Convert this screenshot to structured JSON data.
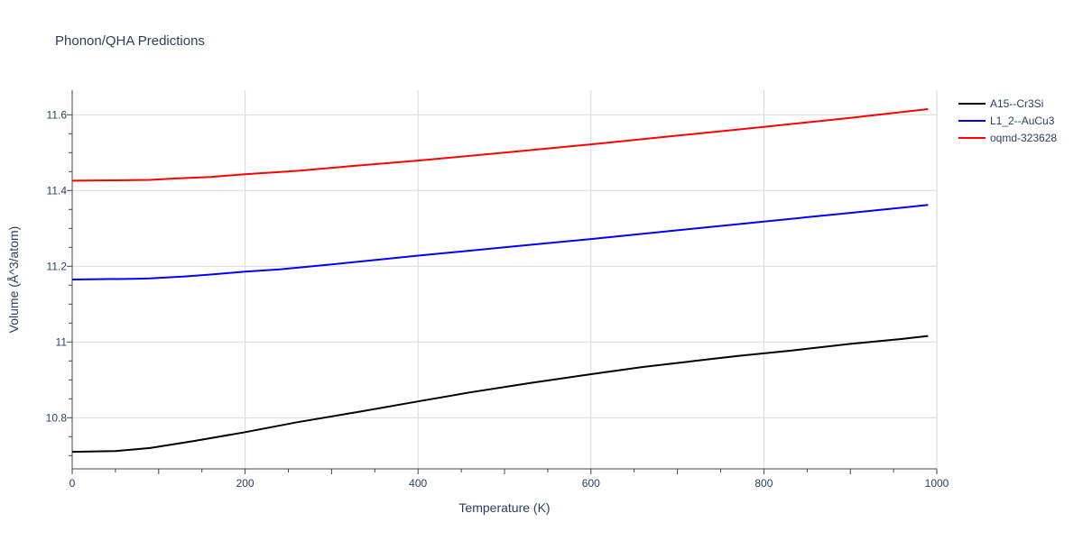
{
  "chart_data": {
    "type": "line",
    "title": "Phonon/QHA Predictions",
    "xlabel": "Temperature (K)",
    "ylabel": "Volume (Å^3/atom)",
    "xlim": [
      0,
      1000
    ],
    "ylim": [
      10.665,
      11.665
    ],
    "xticks": [
      0,
      200,
      400,
      600,
      800,
      1000
    ],
    "xtick_labels": [
      "0",
      "200",
      "400",
      "600",
      "800",
      "1000"
    ],
    "yticks": [
      10.8,
      11.0,
      11.2,
      11.4,
      11.6
    ],
    "ytick_labels": [
      "10.8",
      "11",
      "11.2",
      "11.4",
      "11.6"
    ],
    "grid": true,
    "legend_position": "top-right",
    "series": [
      {
        "name": "A15--Cr3Si",
        "color": "#000000",
        "x": [
          0,
          20,
          50,
          90,
          140,
          200,
          260,
          330,
          400,
          460,
          530,
          600,
          660,
          720,
          770,
          830,
          900,
          960,
          990
        ],
        "y": [
          10.71,
          10.711,
          10.712,
          10.72,
          10.738,
          10.762,
          10.788,
          10.815,
          10.843,
          10.867,
          10.892,
          10.915,
          10.934,
          10.95,
          10.963,
          10.977,
          10.995,
          11.008,
          11.016
        ]
      },
      {
        "name": "L1_2--AuCu3",
        "color": "#0000ff",
        "x": [
          0,
          70,
          90,
          130,
          160,
          200,
          240,
          300,
          400,
          500,
          600,
          700,
          800,
          900,
          990
        ],
        "y": [
          11.165,
          11.167,
          11.168,
          11.173,
          11.178,
          11.186,
          11.192,
          11.205,
          11.228,
          11.25,
          11.272,
          11.295,
          11.318,
          11.341,
          11.362
        ]
      },
      {
        "name": "oqmd-323628",
        "color": "#ff0000",
        "x": [
          0,
          50,
          90,
          120,
          160,
          200,
          260,
          330,
          400,
          500,
          600,
          700,
          800,
          900,
          990
        ],
        "y": [
          11.426,
          11.427,
          11.428,
          11.432,
          11.436,
          11.443,
          11.452,
          11.466,
          11.479,
          11.5,
          11.522,
          11.545,
          11.568,
          11.592,
          11.615
        ]
      }
    ]
  }
}
